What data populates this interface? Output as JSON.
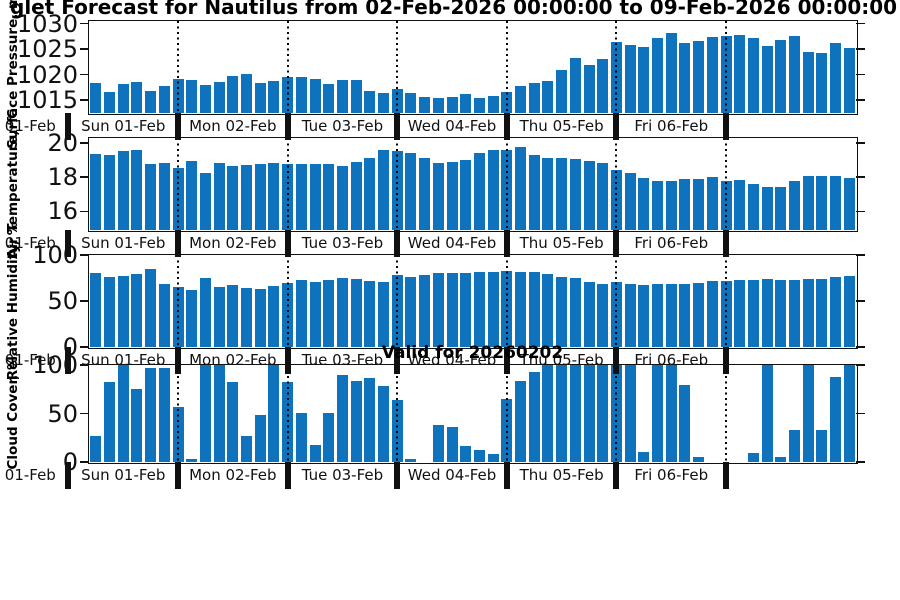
{
  "title": {
    "visible_text": "glet Forecast for Nautilus from 02-Feb-2026 00:00:00 to 09-Feb-2026 00:00:00"
  },
  "annotations": {
    "valid_for": "Valid for 20260202"
  },
  "colors": {
    "bar": "#0E72BD",
    "axis": "#111111",
    "background": "#FFFFFF"
  },
  "x_axis": {
    "day_labels": [
      "Sun 01-Feb",
      "Mon 02-Feb",
      "Tue 03-Feb",
      "Wed 04-Feb",
      "Thu 05-Feb",
      "Fri 06-Feb"
    ],
    "clipped_left_label": "Sun 01-Feb",
    "bars_per_day": 8,
    "n_bars": 56
  },
  "chart_data": [
    {
      "type": "bar",
      "title": "",
      "ylabel": "Surface Pressure, mb",
      "ylim": [
        1012.5,
        1030.5
      ],
      "yticks": [
        1015,
        1020,
        1025,
        1030
      ],
      "grid": "dotted-vertical-day-boundaries",
      "values": [
        1018.3,
        1016.6,
        1018.2,
        1018.5,
        1016.9,
        1017.8,
        1019.2,
        1019.0,
        1017.9,
        1018.5,
        1019.7,
        1020.2,
        1018.4,
        1018.7,
        1019.6,
        1019.6,
        1019.1,
        1018.1,
        1019.0,
        1019.0,
        1016.9,
        1016.5,
        1017.1,
        1016.4,
        1015.7,
        1015.4,
        1015.6,
        1016.2,
        1015.4,
        1015.9,
        1016.7,
        1017.8,
        1018.4,
        1018.8,
        1020.9,
        1023.3,
        1021.9,
        1023.0,
        1026.4,
        1025.8,
        1025.5,
        1027.2,
        1028.1,
        1026.2,
        1026.6,
        1027.3,
        1027.5,
        1027.7,
        1027.2,
        1025.6,
        1026.7,
        1027.5,
        1024.4,
        1024.3,
        1026.1,
        1025.2
      ]
    },
    {
      "type": "bar",
      "title": "",
      "ylabel": "Air Temperature, °C",
      "ylim": [
        14.9,
        20.3
      ],
      "yticks": [
        16,
        18,
        20
      ],
      "grid": "dotted-vertical-day-boundaries",
      "values": [
        19.35,
        19.3,
        19.55,
        19.6,
        18.75,
        18.85,
        18.55,
        18.95,
        18.25,
        18.85,
        18.65,
        18.7,
        18.8,
        18.85,
        18.8,
        18.8,
        18.75,
        18.8,
        18.65,
        18.9,
        19.1,
        19.6,
        19.55,
        19.4,
        19.15,
        18.85,
        18.9,
        19.0,
        19.4,
        19.6,
        19.6,
        19.8,
        19.3,
        19.1,
        19.1,
        19.05,
        18.95,
        18.85,
        18.4,
        18.25,
        17.95,
        17.8,
        17.75,
        17.9,
        17.9,
        18.0,
        17.8,
        17.85,
        17.6,
        17.4,
        17.45,
        17.8,
        18.05,
        18.05,
        18.05,
        17.95
      ]
    },
    {
      "type": "bar",
      "title": "",
      "ylabel": "Relative Humidity, %",
      "ylim": [
        0,
        100
      ],
      "yticks": [
        0,
        50,
        100
      ],
      "grid": "dotted-vertical-day-boundaries",
      "values": [
        80,
        76,
        77,
        79,
        85,
        68,
        65,
        62,
        75,
        65,
        67,
        64,
        63,
        66,
        70,
        73,
        71,
        73,
        75,
        74,
        72,
        71,
        78,
        76,
        78,
        80,
        80,
        80,
        81,
        81,
        83,
        82,
        81,
        79,
        76,
        75,
        71,
        69,
        71,
        68,
        67,
        69,
        68,
        69,
        70,
        72,
        72,
        73,
        73,
        74,
        73,
        73,
        74,
        74,
        76,
        77
      ]
    },
    {
      "type": "bar",
      "title": "Valid for 20260202",
      "ylabel": "Cloud Cover, %",
      "ylim": [
        0,
        100
      ],
      "yticks": [
        0,
        50,
        100
      ],
      "grid": "dotted-vertical-day-boundaries",
      "values": [
        27,
        82,
        100,
        75,
        97,
        97,
        57,
        3,
        100,
        100,
        82,
        27,
        48,
        100,
        82,
        51,
        18,
        51,
        90,
        84,
        87,
        78,
        64,
        3,
        0,
        38,
        36,
        16,
        12,
        8,
        65,
        84,
        93,
        100,
        100,
        100,
        100,
        100,
        100,
        100,
        10,
        100,
        100,
        79,
        5,
        0,
        0,
        0,
        9,
        100,
        5,
        33,
        100,
        33,
        88,
        100
      ]
    }
  ]
}
